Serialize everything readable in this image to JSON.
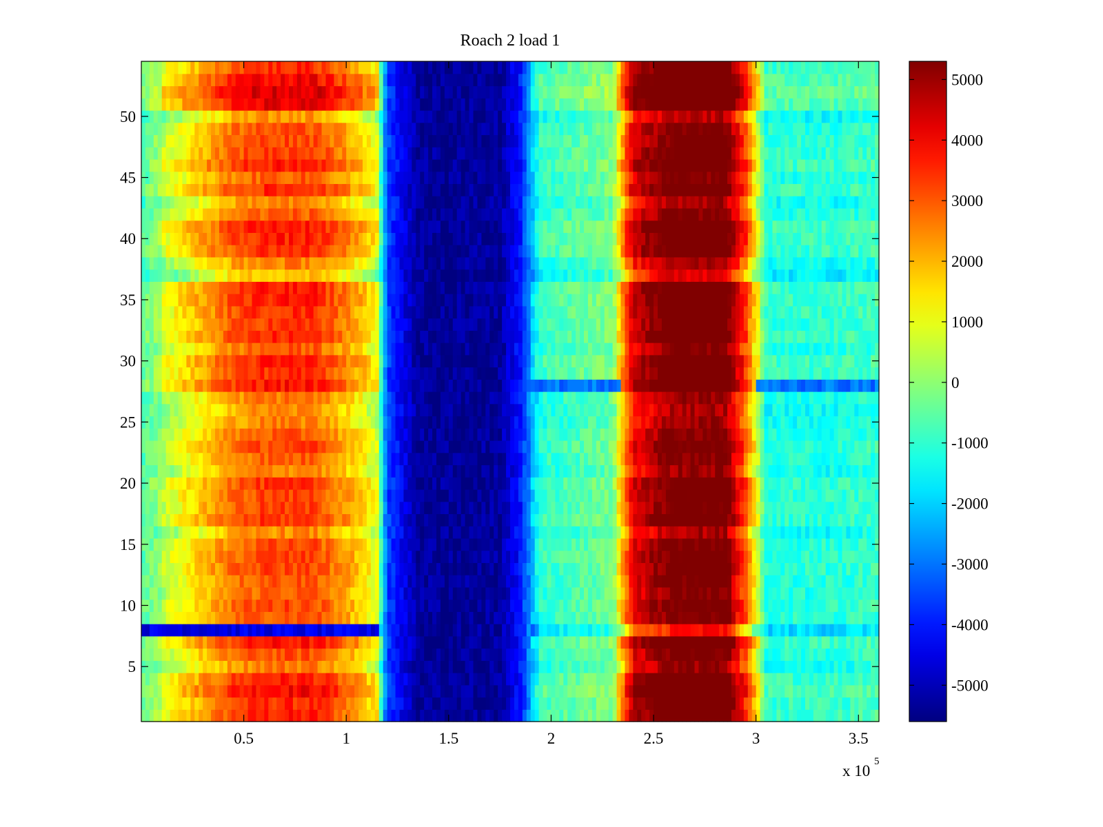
{
  "chart_data": {
    "type": "heatmap",
    "title": "Roach 2 load 1",
    "xlabel": "",
    "ylabel": "",
    "x_exponent_label": "x 10",
    "x_exponent_power": "5",
    "xlim": [
      0,
      360000
    ],
    "ylim": [
      0.5,
      54.5
    ],
    "x_ticks": [
      {
        "value": 0.5,
        "label": "0.5"
      },
      {
        "value": 1,
        "label": "1"
      },
      {
        "value": 1.5,
        "label": "1.5"
      },
      {
        "value": 2,
        "label": "2"
      },
      {
        "value": 2.5,
        "label": "2.5"
      },
      {
        "value": 3,
        "label": "3"
      },
      {
        "value": 3.5,
        "label": "3.5"
      }
    ],
    "y_ticks": [
      {
        "value": 5,
        "label": "5"
      },
      {
        "value": 10,
        "label": "10"
      },
      {
        "value": 15,
        "label": "15"
      },
      {
        "value": 20,
        "label": "20"
      },
      {
        "value": 25,
        "label": "25"
      },
      {
        "value": 30,
        "label": "30"
      },
      {
        "value": 35,
        "label": "35"
      },
      {
        "value": 40,
        "label": "40"
      },
      {
        "value": 45,
        "label": "45"
      },
      {
        "value": 50,
        "label": "50"
      }
    ],
    "colorbar": {
      "colormap": "jet",
      "clim": [
        -5600,
        5300
      ],
      "ticks": [
        {
          "value": 5000,
          "label": "5000"
        },
        {
          "value": 4000,
          "label": "4000"
        },
        {
          "value": 3000,
          "label": "3000"
        },
        {
          "value": 2000,
          "label": "2000"
        },
        {
          "value": 1000,
          "label": "1000"
        },
        {
          "value": 0,
          "label": "0"
        },
        {
          "value": -1000,
          "label": "-1000"
        },
        {
          "value": -2000,
          "label": "-2000"
        },
        {
          "value": -3000,
          "label": "-3000"
        },
        {
          "value": -4000,
          "label": "-4000"
        },
        {
          "value": -5000,
          "label": "-5000"
        }
      ]
    },
    "rows": 54,
    "x_profile": {
      "description": "approximate column profile of values along x (data units) shared by all rows",
      "x": [
        0,
        20000,
        45000,
        60000,
        85000,
        100000,
        115000,
        120000,
        135000,
        150000,
        175000,
        185000,
        195000,
        230000,
        240000,
        260000,
        285000,
        295000,
        305000,
        340000,
        360000
      ],
      "values": [
        -800,
        700,
        2300,
        2700,
        2700,
        1800,
        500,
        -3500,
        -5300,
        -5400,
        -5300,
        -4000,
        -1200,
        -500,
        3800,
        5100,
        5100,
        2600,
        -1300,
        -1300,
        -1100
      ]
    },
    "row_modifiers": {
      "description": "per-row offset in value units applied to warm regions (row index 1..54)",
      "values": [
        700,
        600,
        1000,
        700,
        0,
        300,
        800,
        -1000,
        300,
        400,
        200,
        300,
        400,
        400,
        300,
        -200,
        500,
        400,
        400,
        500,
        -100,
        200,
        400,
        200,
        -100,
        -200,
        0,
        800,
        600,
        700,
        200,
        600,
        500,
        600,
        700,
        700,
        -600,
        -100,
        600,
        700,
        800,
        200,
        -200,
        600,
        200,
        700,
        500,
        400,
        300,
        -300,
        1100,
        1300,
        1000,
        600
      ]
    },
    "notable_rows": [
      {
        "row": 8,
        "note": "strong negative band on left (-4500) across x < 115000"
      },
      {
        "row": 28,
        "note": "blue band (-3000) for x in 185000-235000 and 300000-360000"
      }
    ]
  }
}
